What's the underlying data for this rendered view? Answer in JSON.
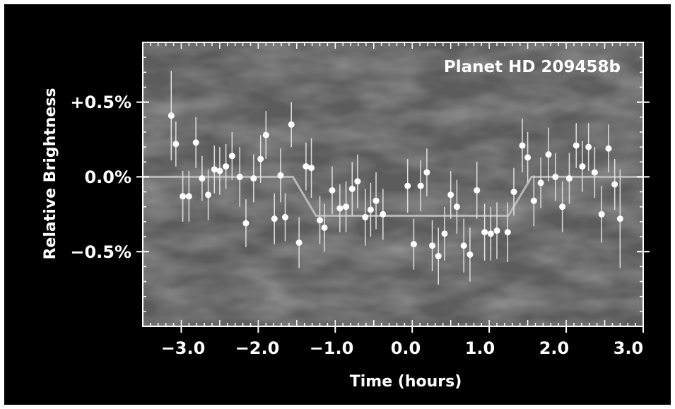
{
  "chart_data": {
    "type": "scatter",
    "title": "Planet HD 209458b",
    "xlabel": "Time (hours)",
    "ylabel": "Relative Brightness",
    "xlim": [
      -3.5,
      3.0
    ],
    "ylim": [
      -1.0,
      0.9
    ],
    "xticks": [
      -3.0,
      -2.0,
      -1.0,
      0.0,
      1.0,
      2.0,
      3.0
    ],
    "xtick_labels": [
      "−3.0",
      "−2.0",
      "−1.0",
      "0.0",
      "1.0",
      "2.0",
      "3.0"
    ],
    "yticks": [
      0.5,
      0.0,
      -0.5
    ],
    "ytick_labels": [
      "+0.5%",
      "0.0%",
      "−0.5%"
    ],
    "grid": false,
    "series": [
      {
        "points": [
          [
            -3.13,
            0.41,
            0.3
          ],
          [
            -3.07,
            0.22,
            0.15
          ],
          [
            -2.98,
            -0.13,
            0.17
          ],
          [
            -2.9,
            -0.13,
            0.17
          ],
          [
            -2.81,
            0.23,
            0.17
          ],
          [
            -2.73,
            -0.01,
            0.15
          ],
          [
            -2.65,
            -0.12,
            0.17
          ],
          [
            -2.57,
            0.05,
            0.16
          ],
          [
            -2.5,
            0.04,
            0.16
          ],
          [
            -2.42,
            0.07,
            0.15
          ],
          [
            -2.34,
            0.14,
            0.16
          ],
          [
            -2.24,
            0.0,
            0.2
          ],
          [
            -2.16,
            -0.31,
            0.16
          ],
          [
            -2.06,
            -0.01,
            0.16
          ],
          [
            -1.97,
            0.12,
            0.16
          ],
          [
            -1.9,
            0.28,
            0.16
          ],
          [
            -1.79,
            -0.28,
            0.17
          ],
          [
            -1.71,
            0.01,
            0.18
          ],
          [
            -1.65,
            -0.27,
            0.16
          ],
          [
            -1.57,
            0.35,
            0.15
          ],
          [
            -1.47,
            -0.44,
            0.17
          ],
          [
            -1.38,
            0.07,
            0.16
          ],
          [
            -1.31,
            0.06,
            0.2
          ],
          [
            -1.2,
            -0.29,
            0.16
          ],
          [
            -1.14,
            -0.34,
            0.16
          ],
          [
            -1.04,
            -0.09,
            0.16
          ],
          [
            -0.94,
            -0.21,
            0.16
          ],
          [
            -0.86,
            -0.2,
            0.17
          ],
          [
            -0.78,
            -0.08,
            0.18
          ],
          [
            -0.71,
            -0.03,
            0.18
          ],
          [
            -0.61,
            -0.27,
            0.19
          ],
          [
            -0.54,
            -0.22,
            0.18
          ],
          [
            -0.47,
            -0.16,
            0.19
          ],
          [
            -0.38,
            -0.25,
            0.17
          ],
          [
            -0.06,
            -0.06,
            0.18
          ],
          [
            0.02,
            -0.45,
            0.17
          ],
          [
            0.11,
            -0.06,
            0.17
          ],
          [
            0.19,
            0.03,
            0.16
          ],
          [
            0.26,
            -0.46,
            0.17
          ],
          [
            0.34,
            -0.53,
            0.19
          ],
          [
            0.42,
            -0.38,
            0.18
          ],
          [
            0.5,
            -0.12,
            0.16
          ],
          [
            0.58,
            -0.2,
            0.18
          ],
          [
            0.67,
            -0.46,
            0.18
          ],
          [
            0.75,
            -0.52,
            0.18
          ],
          [
            0.84,
            -0.09,
            0.19
          ],
          [
            0.94,
            -0.37,
            0.19
          ],
          [
            1.02,
            -0.38,
            0.18
          ],
          [
            1.1,
            -0.36,
            0.19
          ],
          [
            1.24,
            -0.37,
            0.2
          ],
          [
            1.32,
            -0.1,
            0.16
          ],
          [
            1.43,
            0.21,
            0.18
          ],
          [
            1.5,
            0.13,
            0.17
          ],
          [
            1.58,
            -0.16,
            0.17
          ],
          [
            1.67,
            -0.04,
            0.17
          ],
          [
            1.77,
            0.15,
            0.18
          ],
          [
            1.86,
            0.0,
            0.16
          ],
          [
            1.95,
            -0.2,
            0.17
          ],
          [
            2.04,
            -0.01,
            0.17
          ],
          [
            2.13,
            0.21,
            0.15
          ],
          [
            2.21,
            0.07,
            0.17
          ],
          [
            2.29,
            0.2,
            0.16
          ],
          [
            2.37,
            0.03,
            0.17
          ],
          [
            2.46,
            -0.25,
            0.19
          ],
          [
            2.55,
            0.19,
            0.16
          ],
          [
            2.63,
            -0.05,
            0.17
          ],
          [
            2.7,
            -0.28,
            0.33
          ]
        ]
      }
    ],
    "model_curve": [
      [
        -3.5,
        0.0
      ],
      [
        -1.55,
        0.0
      ],
      [
        -1.25,
        -0.26
      ],
      [
        1.25,
        -0.26
      ],
      [
        1.55,
        0.0
      ],
      [
        3.0,
        0.0
      ]
    ],
    "colors": {
      "background": "#000000",
      "panel": "#5c5c5c",
      "axis": "#ffffff",
      "points": "#ffffff",
      "error_bars": "#e0e0e0",
      "model_curve": "#b8b8b8"
    }
  }
}
